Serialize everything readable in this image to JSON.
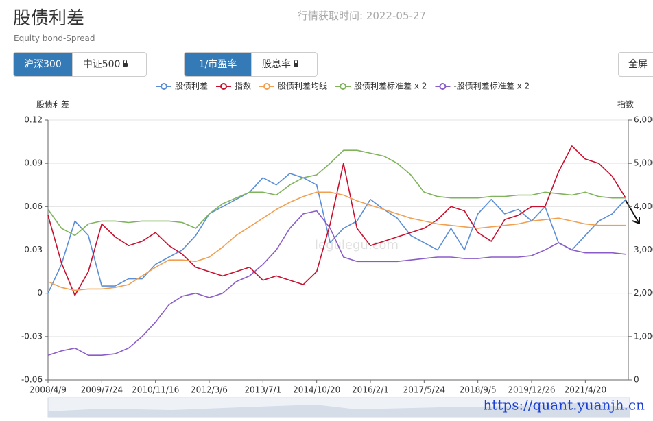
{
  "header": {
    "title": "股债利差",
    "subtitle": "Equity bond-Spread",
    "fetch_time": "行情获取时间: 2022-05-27"
  },
  "controls": {
    "index_buttons": [
      "沪深300",
      "中证500"
    ],
    "metric_buttons": [
      "1/市盈率",
      "股息率"
    ],
    "fullscreen": "全屏"
  },
  "watermarks": [
    "legulegu.com",
    "https://quant.yuanjh.cn"
  ],
  "chart_data": {
    "type": "line",
    "y_label": "股债利差",
    "y2_label": "指数",
    "categories": [
      "2008/4/9",
      null,
      null,
      null,
      "2009/7/24",
      null,
      null,
      null,
      "2010/11/16",
      null,
      null,
      null,
      "2012/3/6",
      null,
      null,
      null,
      "2013/7/1",
      null,
      null,
      null,
      "2014/10/20",
      null,
      null,
      null,
      "2016/2/1",
      null,
      null,
      null,
      "2017/5/24",
      null,
      null,
      null,
      "2018/9/5",
      null,
      null,
      null,
      "2019/12/26",
      null,
      null,
      null,
      "2021/4/20",
      null,
      null,
      null
    ],
    "series": [
      {
        "name": "股债利差",
        "color": "#5b8ed6",
        "values": [
          0.0,
          0.02,
          0.05,
          0.04,
          0.005,
          0.005,
          0.01,
          0.01,
          0.02,
          0.025,
          0.03,
          0.04,
          0.055,
          0.06,
          0.065,
          0.07,
          0.08,
          0.075,
          0.083,
          0.08,
          0.075,
          0.035,
          0.045,
          0.05,
          0.065,
          0.058,
          0.052,
          0.04,
          0.035,
          0.03,
          0.045,
          0.03,
          0.055,
          0.065,
          0.055,
          0.058,
          0.05,
          0.06,
          0.035,
          0.03,
          0.04,
          0.05,
          0.055,
          0.065
        ]
      },
      {
        "name": "指数",
        "color": "#c8102e",
        "axis": "y2",
        "values": [
          3800,
          2700,
          1950,
          2500,
          3600,
          3300,
          3100,
          3200,
          3400,
          3100,
          2900,
          2600,
          2500,
          2400,
          2500,
          2600,
          2300,
          2400,
          2300,
          2200,
          2500,
          3600,
          5000,
          3500,
          3100,
          3200,
          3300,
          3400,
          3500,
          3700,
          4000,
          3900,
          3400,
          3200,
          3700,
          3800,
          4000,
          4000,
          4800,
          5400,
          5100,
          5000,
          4700,
          4200
        ]
      },
      {
        "name": "股债利差均线",
        "color": "#f0a050",
        "values": [
          0.008,
          0.004,
          0.002,
          0.003,
          0.003,
          0.004,
          0.006,
          0.012,
          0.018,
          0.023,
          0.023,
          0.022,
          0.025,
          0.032,
          0.04,
          0.046,
          0.052,
          0.058,
          0.063,
          0.067,
          0.07,
          0.07,
          0.068,
          0.064,
          0.061,
          0.058,
          0.055,
          0.052,
          0.05,
          0.048,
          0.047,
          0.046,
          0.045,
          0.046,
          0.047,
          0.048,
          0.05,
          0.051,
          0.052,
          0.05,
          0.048,
          0.047,
          0.047,
          0.047
        ]
      },
      {
        "name": "股债利差标准差 x 2",
        "color": "#7fb35c",
        "values": [
          0.058,
          0.045,
          0.04,
          0.048,
          0.05,
          0.05,
          0.049,
          0.05,
          0.05,
          0.05,
          0.049,
          0.045,
          0.055,
          0.062,
          0.066,
          0.07,
          0.07,
          0.068,
          0.075,
          0.08,
          0.082,
          0.09,
          0.099,
          0.099,
          0.097,
          0.095,
          0.09,
          0.082,
          0.07,
          0.067,
          0.066,
          0.066,
          0.066,
          0.067,
          0.067,
          0.068,
          0.068,
          0.07,
          0.069,
          0.068,
          0.07,
          0.067,
          0.066,
          0.066
        ]
      },
      {
        "name": "-股债利差标准差 x 2",
        "color": "#8a5cc8",
        "values": [
          -0.043,
          -0.04,
          -0.038,
          -0.043,
          -0.043,
          -0.042,
          -0.038,
          -0.03,
          -0.02,
          -0.008,
          -0.002,
          0,
          -0.003,
          0,
          0.008,
          0.012,
          0.02,
          0.03,
          0.045,
          0.055,
          0.057,
          0.045,
          0.025,
          0.022,
          0.022,
          0.022,
          0.022,
          0.023,
          0.024,
          0.025,
          0.025,
          0.024,
          0.024,
          0.025,
          0.025,
          0.025,
          0.026,
          0.03,
          0.035,
          0.03,
          0.028,
          0.028,
          0.028,
          0.027
        ]
      }
    ],
    "ylim": [
      -0.06,
      0.12
    ],
    "yticks": [
      -0.06,
      -0.03,
      0,
      0.03,
      0.06,
      0.09,
      0.12
    ],
    "y2lim": [
      0,
      6000
    ],
    "y2ticks": [
      0,
      {
        "value": 1000,
        "label": "1,000"
      },
      {
        "value": 2000,
        "label": "2,000"
      },
      {
        "value": 3000,
        "label": "3,000"
      },
      {
        "value": 4000,
        "label": "4,000"
      },
      {
        "value": 5000,
        "label": "5,000"
      },
      {
        "value": 6000,
        "label": "6,000"
      }
    ],
    "grid": true,
    "legend": "top"
  }
}
